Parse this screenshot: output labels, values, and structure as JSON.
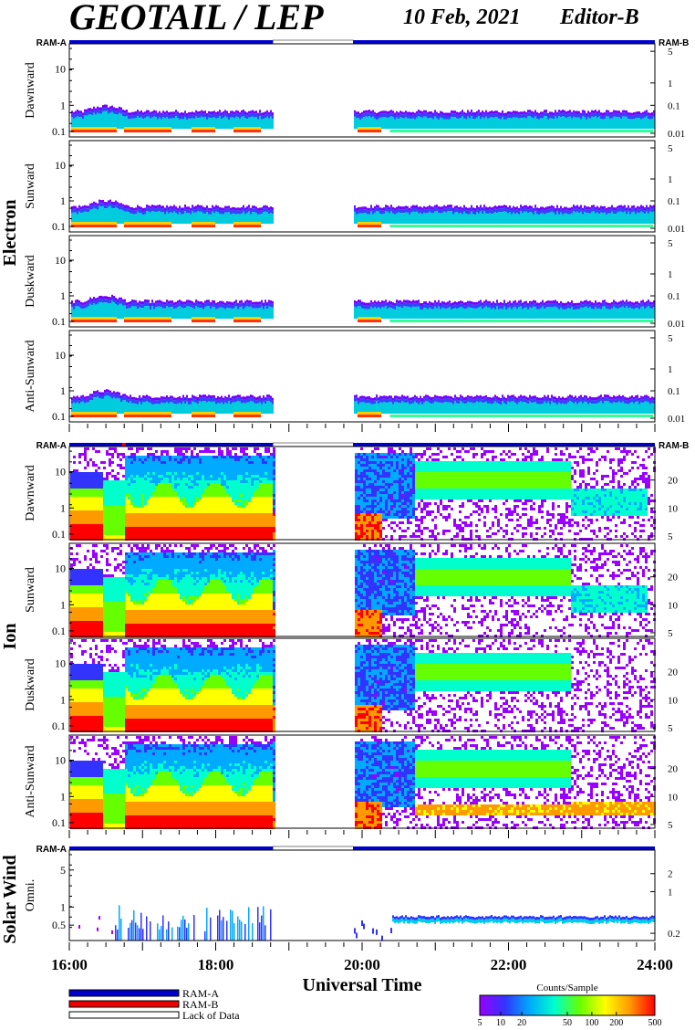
{
  "header": {
    "title": "GEOTAIL / LEP",
    "date": "10 Feb, 2021",
    "editor": "Editor-B"
  },
  "chart_data": {
    "type": "heatmap",
    "x_axis": {
      "label": "Universal Time",
      "ticks": [
        "16:00",
        "18:00",
        "20:00",
        "22:00",
        "24:00"
      ],
      "range_hours": [
        16,
        24
      ]
    },
    "data_gap_hours": [
      18.78,
      19.88
    ],
    "groups": [
      {
        "name": "Electron",
        "ram_left": "RAM-A",
        "ram_right": "RAM-B",
        "left_ticks": [
          "10",
          "1",
          "0.1"
        ],
        "right_ticks": [
          "5",
          "1",
          "0.1",
          "0.01"
        ],
        "panels": [
          "Dawnward",
          "Sunward",
          "Duskward",
          "Anti-Sunward"
        ]
      },
      {
        "name": "Ion",
        "ram_left": "RAM-A",
        "ram_right": "RAM-B",
        "left_ticks": [
          "10",
          "1",
          "0.1"
        ],
        "right_ticks": [
          "20",
          "10",
          "5"
        ],
        "panels": [
          "Dawnward",
          "Sunward",
          "Duskward",
          "Anti-Sunward"
        ]
      },
      {
        "name": "Solar Wind",
        "ram_left": "RAM-A",
        "ram_right": "",
        "left_ticks": [
          "5",
          "1",
          "0.5"
        ],
        "right_ticks": [
          "2",
          "1",
          "0.2"
        ],
        "panels": [
          "Omni."
        ]
      }
    ],
    "legend": {
      "items": [
        {
          "label": "RAM-A",
          "color": "#0000cc"
        },
        {
          "label": "RAM-B",
          "color": "#ee0000"
        },
        {
          "label": "Lack of Data",
          "color": "#ffffff"
        }
      ]
    },
    "colorbar": {
      "title": "Counts/Sample",
      "ticks": [
        "5",
        "10",
        "20",
        "50",
        "100",
        "200",
        "500"
      ],
      "colors": [
        "#9900ff",
        "#3333ff",
        "#00aaff",
        "#00ffcc",
        "#66ff00",
        "#ffff00",
        "#ff9900",
        "#ff0000"
      ]
    }
  }
}
